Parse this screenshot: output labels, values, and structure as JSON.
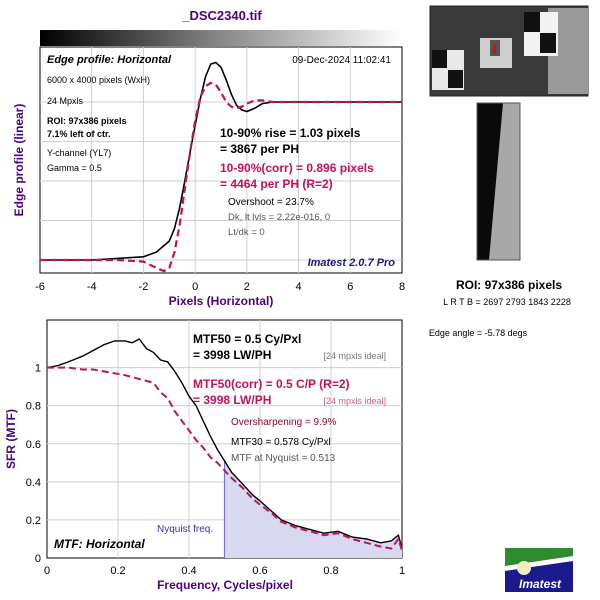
{
  "figure": {
    "title": "_DSC2340.tif",
    "roi_label": "ROI: 97x386 pixels",
    "roi_coords": "L R  T B = 2697 2793  1843 2228",
    "edge_angle": "Edge angle = -5.78 degs",
    "logo_text": "Imatest",
    "colors": {
      "title": "#4b0082",
      "black_curve": "#000000",
      "corr_curve": "#c0125a",
      "fill": "#d8d8f0",
      "nyquist": "#7777cc",
      "brand": "#1a1a8c"
    }
  },
  "edge_panel": {
    "header": "Edge profile: Horizontal",
    "timestamp": "09-Dec-2024 11:02:41",
    "info": [
      "6000 x 4000 pixels (WxH)",
      "24 Mpxls"
    ],
    "roi": [
      "ROI: 97x386 pixels",
      "7.1% left of ctr."
    ],
    "channel": [
      "Y-channel  (YL7)",
      "Gamma = 0.5"
    ],
    "rise1": "10-90% rise = 1.03 pixels",
    "rise2": "= 3867 per PH",
    "corr1": "10-90%(corr) = 0.896 pixels",
    "corr2": "= 4464 per PH  (R=2)",
    "overshoot": "Overshoot = 23.7%",
    "dk": "Dk, lt lvls = 2.22e-016, 0",
    "ltdk": "Lt/dk = 0",
    "version": "Imatest 2.0.7 Pro",
    "ylabel": "Edge profile (linear)",
    "xlabel": "Pixels (Horizontal)"
  },
  "mtf_panel": {
    "mtf50a": "MTF50 = 0.5 Cy/Pxl",
    "mtf50b": "= 3998 LW/PH",
    "ideal1": "[24 mpxls ideal]",
    "corr1": "MTF50(corr) = 0.5 C/P  (R=2)",
    "corr2": "= 3998 LW/PH",
    "ideal2": "[24 mpxls ideal]",
    "oversharp": "Oversharpening = 9.9%",
    "mtf30": "MTF30 = 0.578 Cy/Pxl",
    "nyq_val": "MTF at Nyquist = 0.513",
    "nyq_label": "Nyquist freq.",
    "header": "MTF: Horizontal",
    "ylabel": "SFR (MTF)",
    "xlabel": "Frequency, Cycles/pixel"
  },
  "chart_data": [
    {
      "type": "line",
      "title": "_DSC2340.tif",
      "xlabel": "Pixels (Horizontal)",
      "ylabel": "Edge profile (linear)",
      "xlim": [
        -6,
        8
      ],
      "xticks": [
        -6,
        -4,
        -2,
        0,
        2,
        4,
        6,
        8
      ],
      "ylim": [
        0,
        1.45
      ],
      "grid": true,
      "series": [
        {
          "name": "",
          "style": "solid",
          "x": [
            -6,
            -4,
            -3,
            -2,
            -1.5,
            -1,
            -0.8,
            -0.6,
            -0.4,
            -0.2,
            0,
            0.2,
            0.4,
            0.6,
            0.8,
            1,
            1.2,
            1.4,
            1.6,
            1.8,
            2,
            2.3,
            2.6,
            3,
            3.5,
            4,
            5,
            6,
            7,
            8
          ],
          "y": [
            0,
            0,
            0.01,
            0.02,
            0.05,
            0.12,
            0.2,
            0.33,
            0.5,
            0.68,
            0.85,
            1.02,
            1.16,
            1.24,
            1.25,
            1.22,
            1.14,
            1.05,
            0.98,
            0.95,
            0.94,
            0.96,
            0.99,
            1.0,
            1.0,
            1.0,
            1.0,
            1.0,
            1.0,
            1.0
          ]
        },
        {
          "name": "",
          "style": "dashed",
          "x": [
            -6,
            -4,
            -3,
            -2,
            -1.5,
            -1.2,
            -1,
            -0.8,
            -0.6,
            -0.4,
            -0.2,
            0,
            0.2,
            0.4,
            0.6,
            0.8,
            1,
            1.2,
            1.4,
            1.6,
            1.8,
            2,
            2.3,
            2.6,
            3,
            3.5,
            4,
            5,
            6,
            7,
            8
          ],
          "y": [
            0,
            0,
            0,
            -0.01,
            -0.05,
            -0.07,
            -0.05,
            0.05,
            0.22,
            0.45,
            0.68,
            0.88,
            1.03,
            1.1,
            1.12,
            1.11,
            1.06,
            1.0,
            0.97,
            0.96,
            0.97,
            0.99,
            1.01,
            1.01,
            1.0,
            1.0,
            1.0,
            1.0,
            1.0,
            1.0,
            1.0
          ]
        }
      ]
    },
    {
      "type": "line",
      "xlabel": "Frequency, Cycles/pixel",
      "ylabel": "SFR (MTF)",
      "xlim": [
        0,
        1
      ],
      "xticks": [
        0,
        0.2,
        0.4,
        0.6,
        0.8,
        1
      ],
      "ylim": [
        0,
        1.25
      ],
      "yticks": [
        0,
        0.2,
        0.4,
        0.6,
        0.8,
        1
      ],
      "grid": true,
      "nyquist": 0.5,
      "series": [
        {
          "name": "",
          "style": "solid",
          "x": [
            0,
            0.03,
            0.06,
            0.1,
            0.13,
            0.16,
            0.19,
            0.22,
            0.24,
            0.26,
            0.28,
            0.3,
            0.32,
            0.34,
            0.36,
            0.38,
            0.4,
            0.42,
            0.44,
            0.46,
            0.48,
            0.5,
            0.52,
            0.55,
            0.58,
            0.6,
            0.63,
            0.66,
            0.7,
            0.74,
            0.78,
            0.82,
            0.86,
            0.9,
            0.94,
            0.97,
            0.99,
            1.0
          ],
          "y": [
            1.0,
            1.01,
            1.03,
            1.06,
            1.09,
            1.12,
            1.14,
            1.14,
            1.13,
            1.15,
            1.1,
            1.08,
            1.04,
            1.03,
            0.98,
            0.92,
            0.85,
            0.8,
            0.72,
            0.64,
            0.57,
            0.51,
            0.45,
            0.39,
            0.33,
            0.3,
            0.25,
            0.2,
            0.17,
            0.15,
            0.13,
            0.14,
            0.11,
            0.1,
            0.08,
            0.09,
            0.12,
            0.05
          ]
        },
        {
          "name": "",
          "style": "dashed",
          "x": [
            0,
            0.03,
            0.06,
            0.1,
            0.13,
            0.16,
            0.19,
            0.22,
            0.24,
            0.26,
            0.28,
            0.3,
            0.32,
            0.34,
            0.36,
            0.38,
            0.4,
            0.42,
            0.44,
            0.46,
            0.48,
            0.5,
            0.52,
            0.55,
            0.58,
            0.6,
            0.63,
            0.66,
            0.7,
            0.74,
            0.78,
            0.82,
            0.86,
            0.9,
            0.94,
            0.97,
            0.99,
            1.0
          ],
          "y": [
            1.0,
            1.0,
            1.0,
            0.99,
            0.99,
            0.98,
            0.97,
            0.96,
            0.95,
            0.94,
            0.93,
            0.92,
            0.87,
            0.84,
            0.77,
            0.72,
            0.67,
            0.62,
            0.58,
            0.53,
            0.5,
            0.46,
            0.42,
            0.37,
            0.31,
            0.28,
            0.24,
            0.19,
            0.16,
            0.14,
            0.12,
            0.13,
            0.1,
            0.08,
            0.06,
            0.05,
            0.1,
            0.04
          ]
        }
      ]
    }
  ]
}
